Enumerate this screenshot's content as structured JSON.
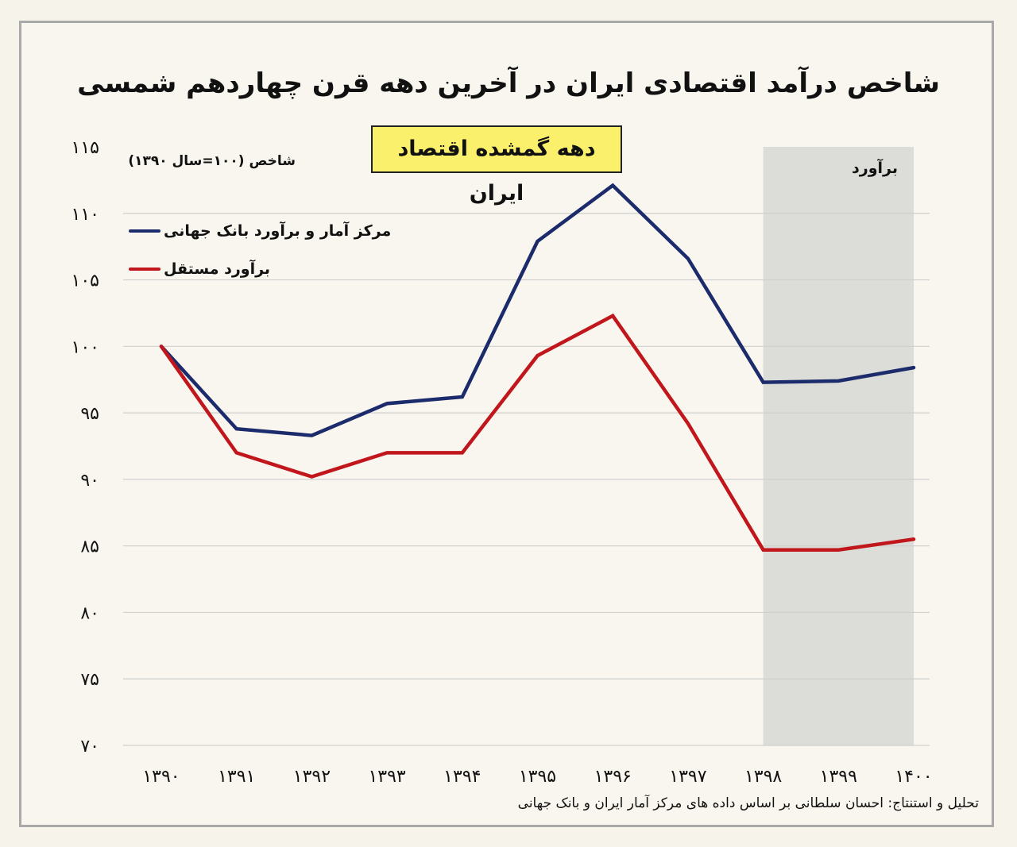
{
  "chart_data": {
    "type": "line",
    "title": "شاخص درآمد اقتصادی ایران در آخرین دهه قرن چهاردهم شمسی",
    "subtitle": "دهه گمشده اقتصاد ایران",
    "ylabel": "شاخص (۱۰۰=سال ۱۳۹۰)",
    "xlabel": "",
    "categories": [
      "۱۳۹۰",
      "۱۳۹۱",
      "۱۳۹۲",
      "۱۳۹۳",
      "۱۳۹۴",
      "۱۳۹۵",
      "۱۳۹۶",
      "۱۳۹۷",
      "۱۳۹۸",
      "۱۳۹۹",
      "۱۴۰۰"
    ],
    "y_ticks": [
      70,
      75,
      80,
      85,
      90,
      95,
      100,
      105,
      110,
      115
    ],
    "y_tick_labels": [
      "۷۰",
      "۷۵",
      "۸۰",
      "۸۵",
      "۹۰",
      "۹۵",
      "۱۰۰",
      "۱۰۵",
      "۱۱۰",
      "۱۱۵"
    ],
    "ylim": [
      70,
      115
    ],
    "grid": true,
    "legend_position": "top-left",
    "series": [
      {
        "name": "مرکز آمار و برآورد بانک جهانی",
        "color": "#1c2b6b",
        "values": [
          100,
          93.8,
          93.3,
          95.7,
          96.2,
          107.9,
          112.1,
          106.6,
          97.3,
          97.4,
          98.4
        ]
      },
      {
        "name": "برآورد مستقل",
        "color": "#c0161c",
        "values": [
          100,
          92.0,
          90.2,
          92.0,
          92.0,
          99.3,
          102.3,
          94.2,
          84.7,
          84.7,
          85.5
        ]
      }
    ],
    "shaded_region": {
      "from_index": 8,
      "to_index": 10,
      "label": "برآورد",
      "color": "#dcdcd8"
    },
    "source_note": "تحلیل و استنتاج: احسان سلطانی بر اساس داده های مرکز آمار ایران و بانک جهانی"
  }
}
